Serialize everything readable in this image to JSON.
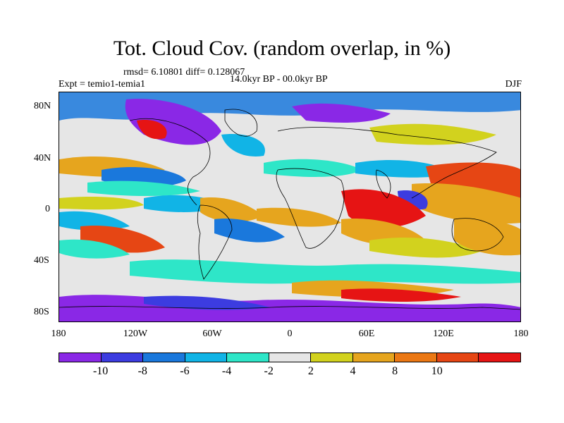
{
  "title": "Tot. Cloud Cov. (random overlap, in %)",
  "stats": "rmsd= 6.10801 diff= 0.128067",
  "expt": "Expt = temio1-temia1",
  "period": "14.0kyr BP - 00.0kyr BP",
  "season": "DJF",
  "lat_labels": [
    "80N",
    "40N",
    "0",
    "40S",
    "80S"
  ],
  "lon_labels": [
    "180",
    "120W",
    "60W",
    "0",
    "60E",
    "120E",
    "180"
  ],
  "colorbar": {
    "labels": [
      "-10",
      "-8",
      "-6",
      "-4",
      "-2",
      "2",
      "4",
      "8",
      "10"
    ],
    "colors": [
      "#8a28e6",
      "#3c3ce0",
      "#1a78dc",
      "#11b4e6",
      "#2ee6c8",
      "#e6e6e6",
      "#d2d21e",
      "#e6a51e",
      "#eb7814",
      "#e64614",
      "#e61414"
    ]
  }
}
